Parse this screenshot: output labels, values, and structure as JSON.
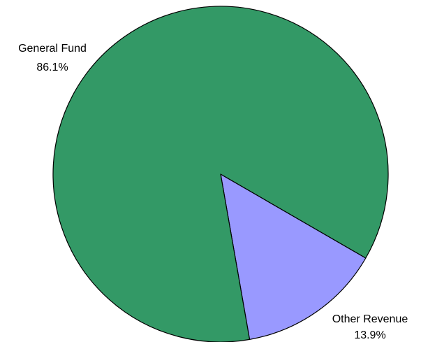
{
  "chart_data": {
    "type": "pie",
    "categories": [
      "Other Revenue",
      "General Fund"
    ],
    "values": [
      13.9,
      86.1
    ],
    "value_labels": [
      "13.9%",
      "86.1%"
    ],
    "colors": [
      "#9999ff",
      "#339966"
    ]
  }
}
